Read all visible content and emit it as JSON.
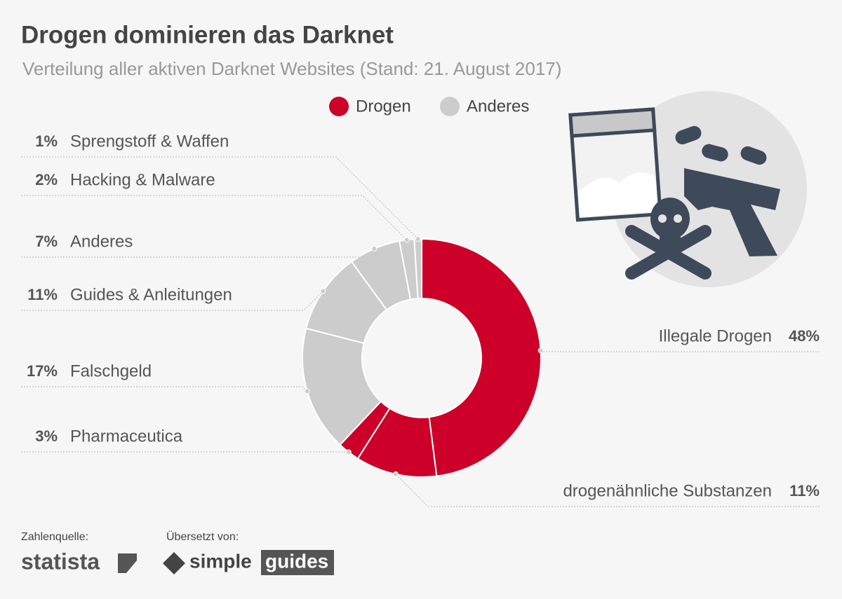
{
  "chart_data": {
    "type": "donut",
    "title": "Drogen dominieren das Darknet",
    "subtitle": "Verteilung aller aktiven Darknet Websites (Stand: 21. August 2017)",
    "categories": [
      "Illegale Drogen",
      "drogenähnliche Substanzen",
      "Pharmaceutica",
      "Falschgeld",
      "Guides & Anleitungen",
      "Anderes",
      "Hacking & Malware",
      "Sprengstoff & Waffen"
    ],
    "values": [
      48,
      11,
      3,
      17,
      11,
      7,
      2,
      1
    ],
    "value_labels": [
      "48%",
      "11%",
      "3%",
      "17%",
      "11%",
      "7%",
      "2%",
      "1%"
    ],
    "colors": [
      "#cc0029",
      "#cc0029",
      "#cc0029",
      "#cccccc",
      "#cccccc",
      "#cccccc",
      "#cccccc",
      "#cccccc"
    ],
    "legend": [
      {
        "name": "Drogen",
        "color": "#cc0029"
      },
      {
        "name": "Anderes",
        "color": "#cccccc"
      }
    ]
  },
  "footer": {
    "source_label": "Zahlenquelle:",
    "source": "statista",
    "translated_label": "Übersetzt von:",
    "translator_1": "simple",
    "translator_2": "guides"
  }
}
